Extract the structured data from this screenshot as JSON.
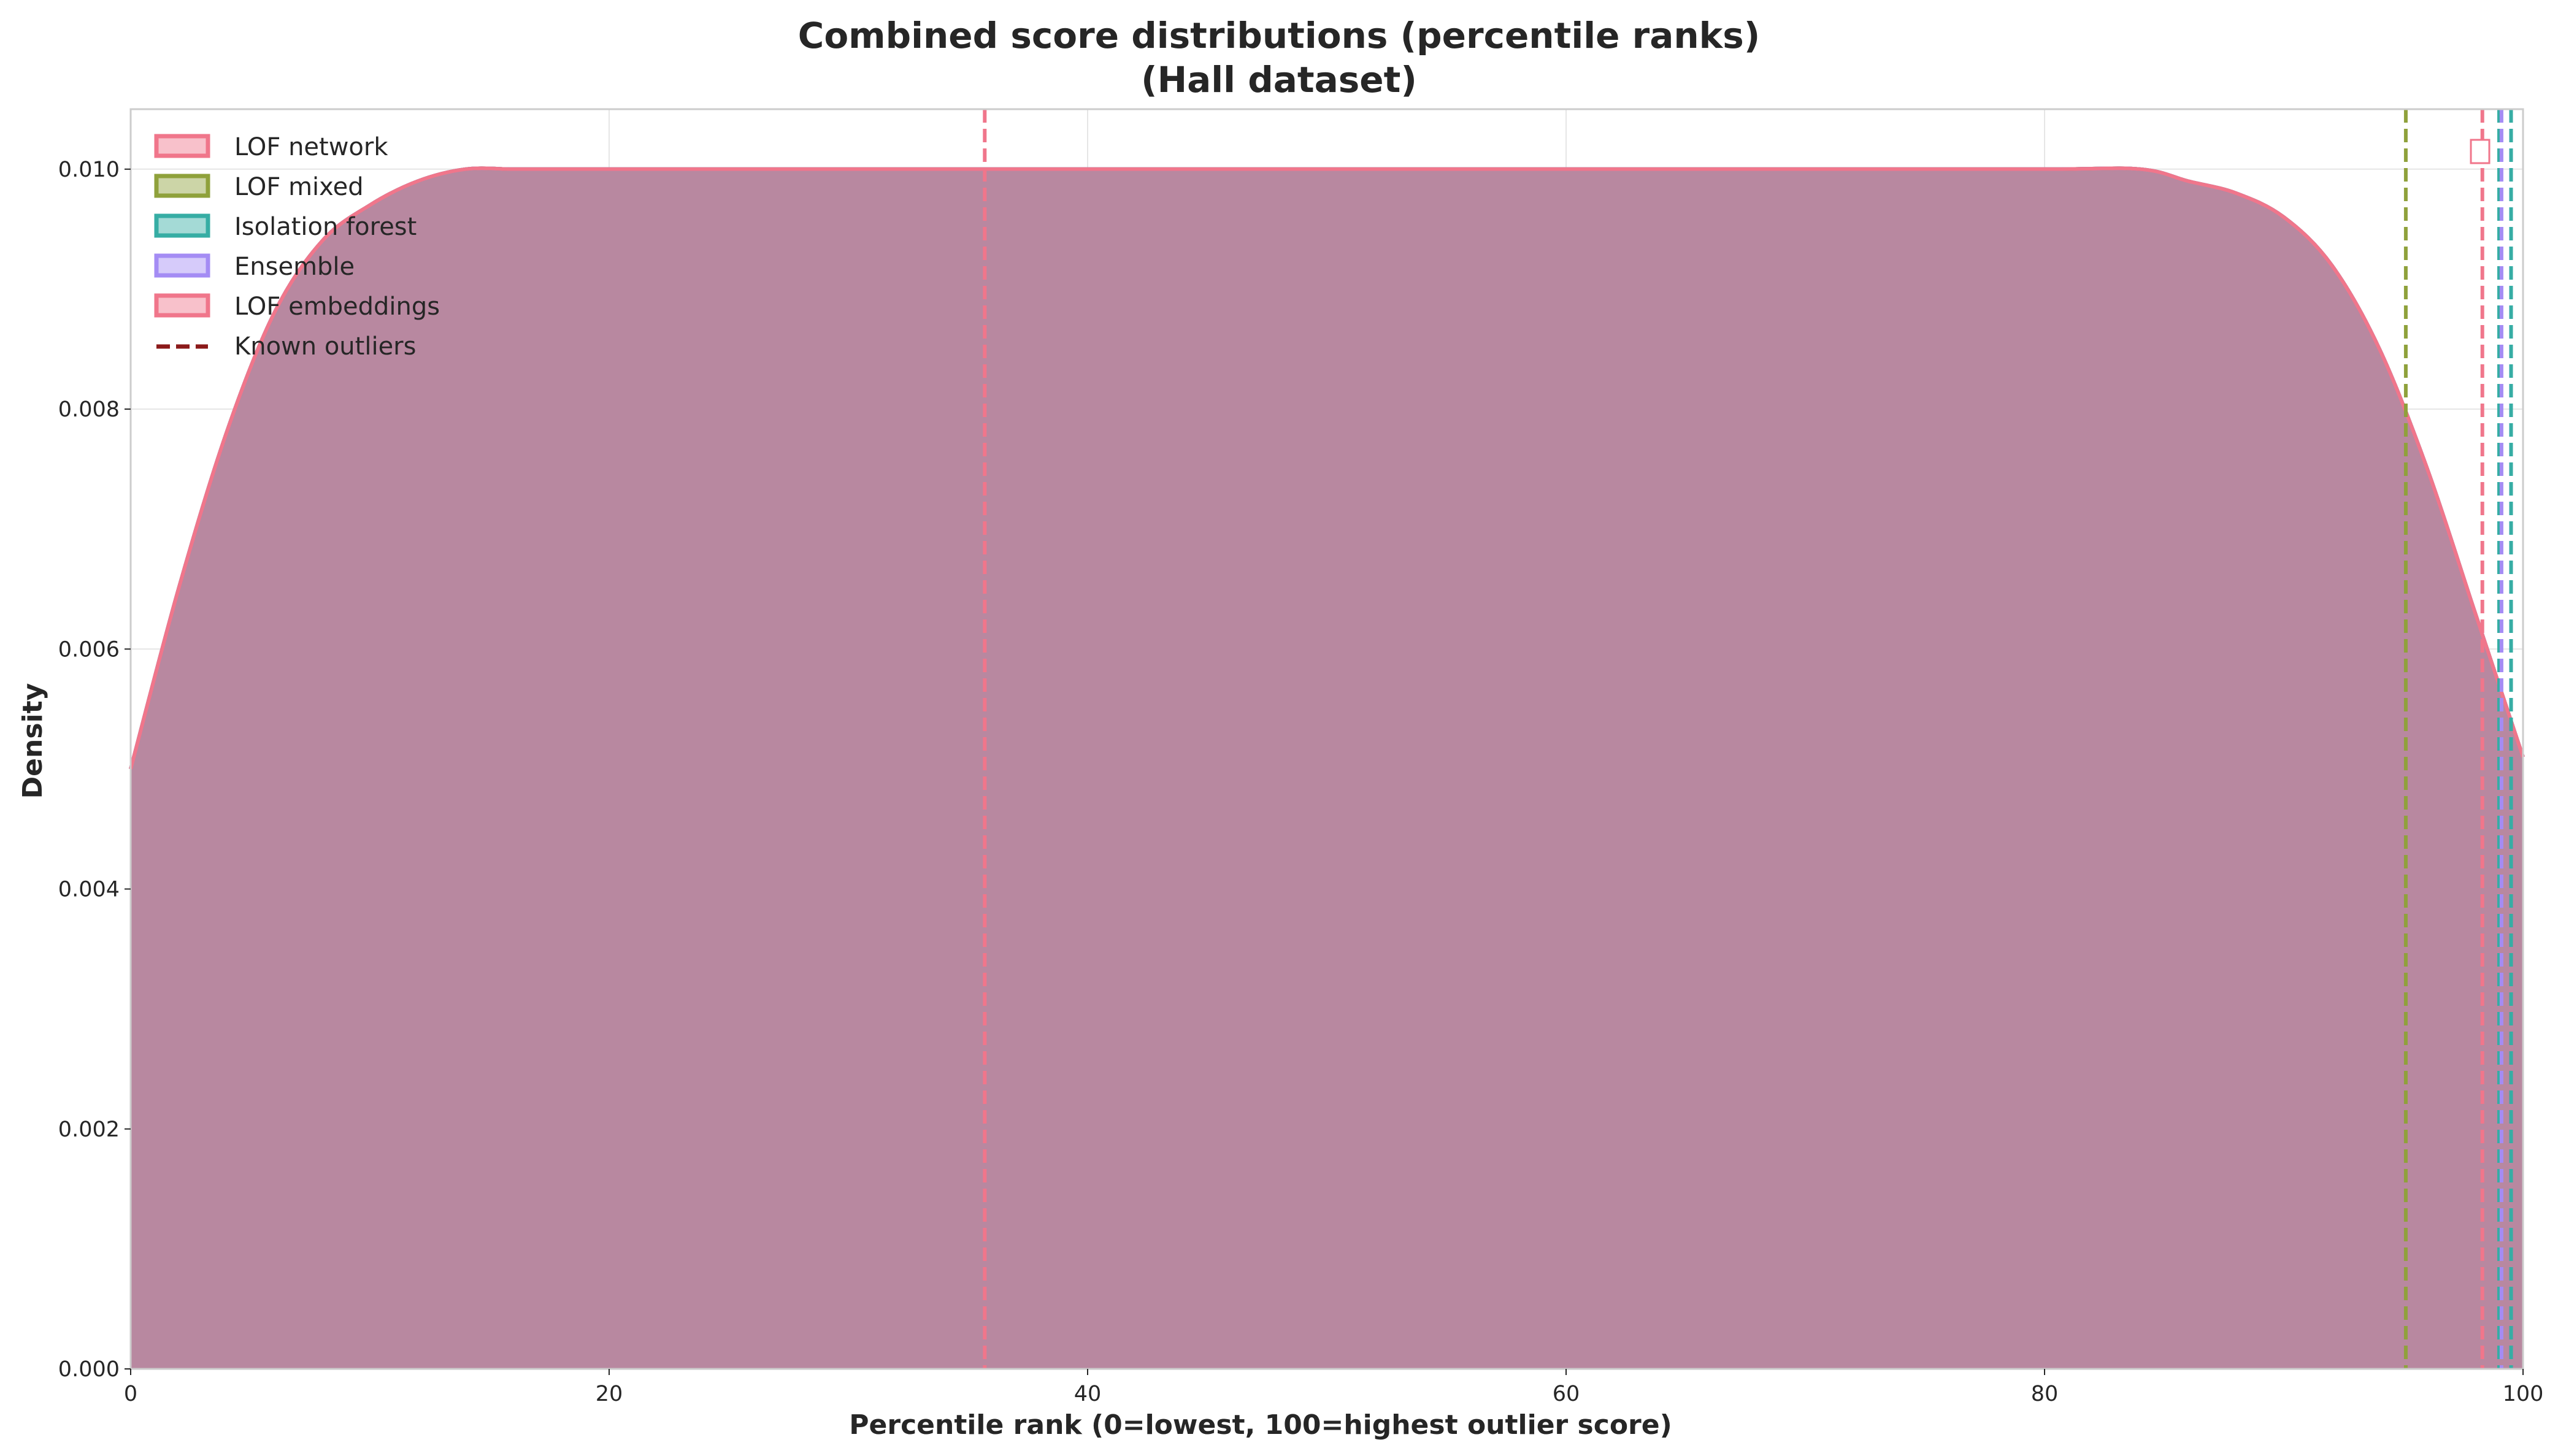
{
  "chart_data": {
    "type": "area",
    "title_line1": "Combined score distributions (percentile ranks)",
    "title_line2": "(Hall dataset)",
    "xlabel": "Percentile rank (0=lowest, 100=highest outlier score)",
    "ylabel": "Density",
    "xlim": [
      0,
      100
    ],
    "ylim": [
      0,
      0.0105
    ],
    "xticks": [
      0,
      20,
      40,
      60,
      80,
      100
    ],
    "xtick_labels": [
      "0",
      "20",
      "40",
      "60",
      "80",
      "100"
    ],
    "yticks": [
      0,
      0.002,
      0.004,
      0.006,
      0.008,
      0.01
    ],
    "ytick_labels": [
      "0.000",
      "0.002",
      "0.004",
      "0.006",
      "0.008",
      "0.010"
    ],
    "grid": true,
    "legend_position": "upper-left",
    "x": [
      0,
      2,
      4,
      6,
      8,
      10,
      12,
      14,
      16,
      18,
      20,
      30,
      40,
      50,
      60,
      70,
      80,
      84,
      86,
      88,
      90,
      92,
      94,
      96,
      98,
      100
    ],
    "series": [
      {
        "name": "LOF network",
        "color": "#f0768b",
        "values": [
          0.005,
          0.0065,
          0.0078,
          0.0088,
          0.0094,
          0.0097,
          0.0099,
          0.01,
          0.01,
          0.01,
          0.01,
          0.01,
          0.01,
          0.01,
          0.01,
          0.01,
          0.01,
          0.01,
          0.0099,
          0.0098,
          0.0096,
          0.0092,
          0.0085,
          0.0075,
          0.0063,
          0.0051
        ]
      },
      {
        "name": "LOF mixed",
        "color": "#8fa13b",
        "values": [
          0.005,
          0.0065,
          0.0078,
          0.0088,
          0.0094,
          0.0097,
          0.0099,
          0.01,
          0.01,
          0.01,
          0.01,
          0.01,
          0.01,
          0.01,
          0.01,
          0.01,
          0.01,
          0.01,
          0.0099,
          0.0098,
          0.0096,
          0.0092,
          0.0085,
          0.0075,
          0.0063,
          0.0051
        ]
      },
      {
        "name": "Isolation forest",
        "color": "#36ada4",
        "values": [
          0.005,
          0.0065,
          0.0078,
          0.0088,
          0.0094,
          0.0097,
          0.0099,
          0.01,
          0.01,
          0.01,
          0.01,
          0.01,
          0.01,
          0.01,
          0.01,
          0.01,
          0.01,
          0.01,
          0.0099,
          0.0098,
          0.0096,
          0.0092,
          0.0085,
          0.0075,
          0.0063,
          0.0051
        ]
      },
      {
        "name": "Ensemble",
        "color": "#a48cf4",
        "values": [
          0.005,
          0.0065,
          0.0078,
          0.0088,
          0.0094,
          0.0097,
          0.0099,
          0.01,
          0.01,
          0.01,
          0.01,
          0.01,
          0.01,
          0.01,
          0.01,
          0.01,
          0.01,
          0.01,
          0.0099,
          0.0098,
          0.0096,
          0.0092,
          0.0085,
          0.0075,
          0.0063,
          0.0051
        ]
      },
      {
        "name": "LOF embeddings",
        "color": "#f0768b",
        "values": [
          0.005,
          0.0065,
          0.0078,
          0.0088,
          0.0094,
          0.0097,
          0.0099,
          0.01,
          0.01,
          0.01,
          0.01,
          0.01,
          0.01,
          0.01,
          0.01,
          0.01,
          0.01,
          0.01,
          0.0099,
          0.0098,
          0.0096,
          0.0092,
          0.0085,
          0.0075,
          0.0063,
          0.0051
        ]
      }
    ],
    "outlier_lines": [
      {
        "x": 35.7,
        "color": "#f0768b"
      },
      {
        "x": 95.1,
        "color": "#8fa13b"
      },
      {
        "x": 98.3,
        "color": "#f0768b"
      },
      {
        "x": 99.0,
        "color": "#36ada4"
      },
      {
        "x": 99.1,
        "color": "#a48cf4"
      },
      {
        "x": 99.5,
        "color": "#36ada4"
      }
    ],
    "known_outliers_label": "Known outliers",
    "known_outliers_legend_color": "#8b1a1a",
    "overlay_fill_color": "#c08ca8"
  }
}
